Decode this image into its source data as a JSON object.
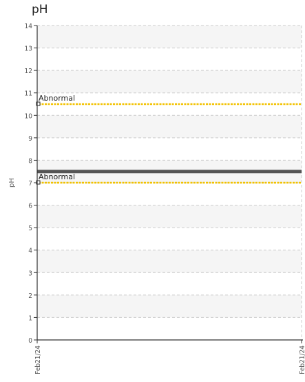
{
  "chart_data": {
    "type": "line",
    "title": "pH",
    "ylabel": "pH",
    "xlabel": "",
    "ylim": [
      0,
      14
    ],
    "y_ticks": [
      0,
      1,
      2,
      3,
      4,
      5,
      6,
      7,
      8,
      9,
      10,
      11,
      12,
      13,
      14
    ],
    "x_ticks": [
      "Feb21/24",
      "Feb21/24"
    ],
    "grid": true,
    "colors": {
      "band_light": "#f5f5f5",
      "band_white": "#ffffff",
      "grid": "#cccccc",
      "axis": "#333333",
      "threshold": "#f2c200",
      "series": "#555555"
    },
    "thresholds": [
      {
        "label": "Abnormal",
        "value": 10.5
      },
      {
        "label": "Abnormal",
        "value": 7.0
      }
    ],
    "series": [
      {
        "x": [
          "Feb21/24",
          "Feb21/24"
        ],
        "values": [
          7.5,
          7.5
        ]
      }
    ]
  }
}
